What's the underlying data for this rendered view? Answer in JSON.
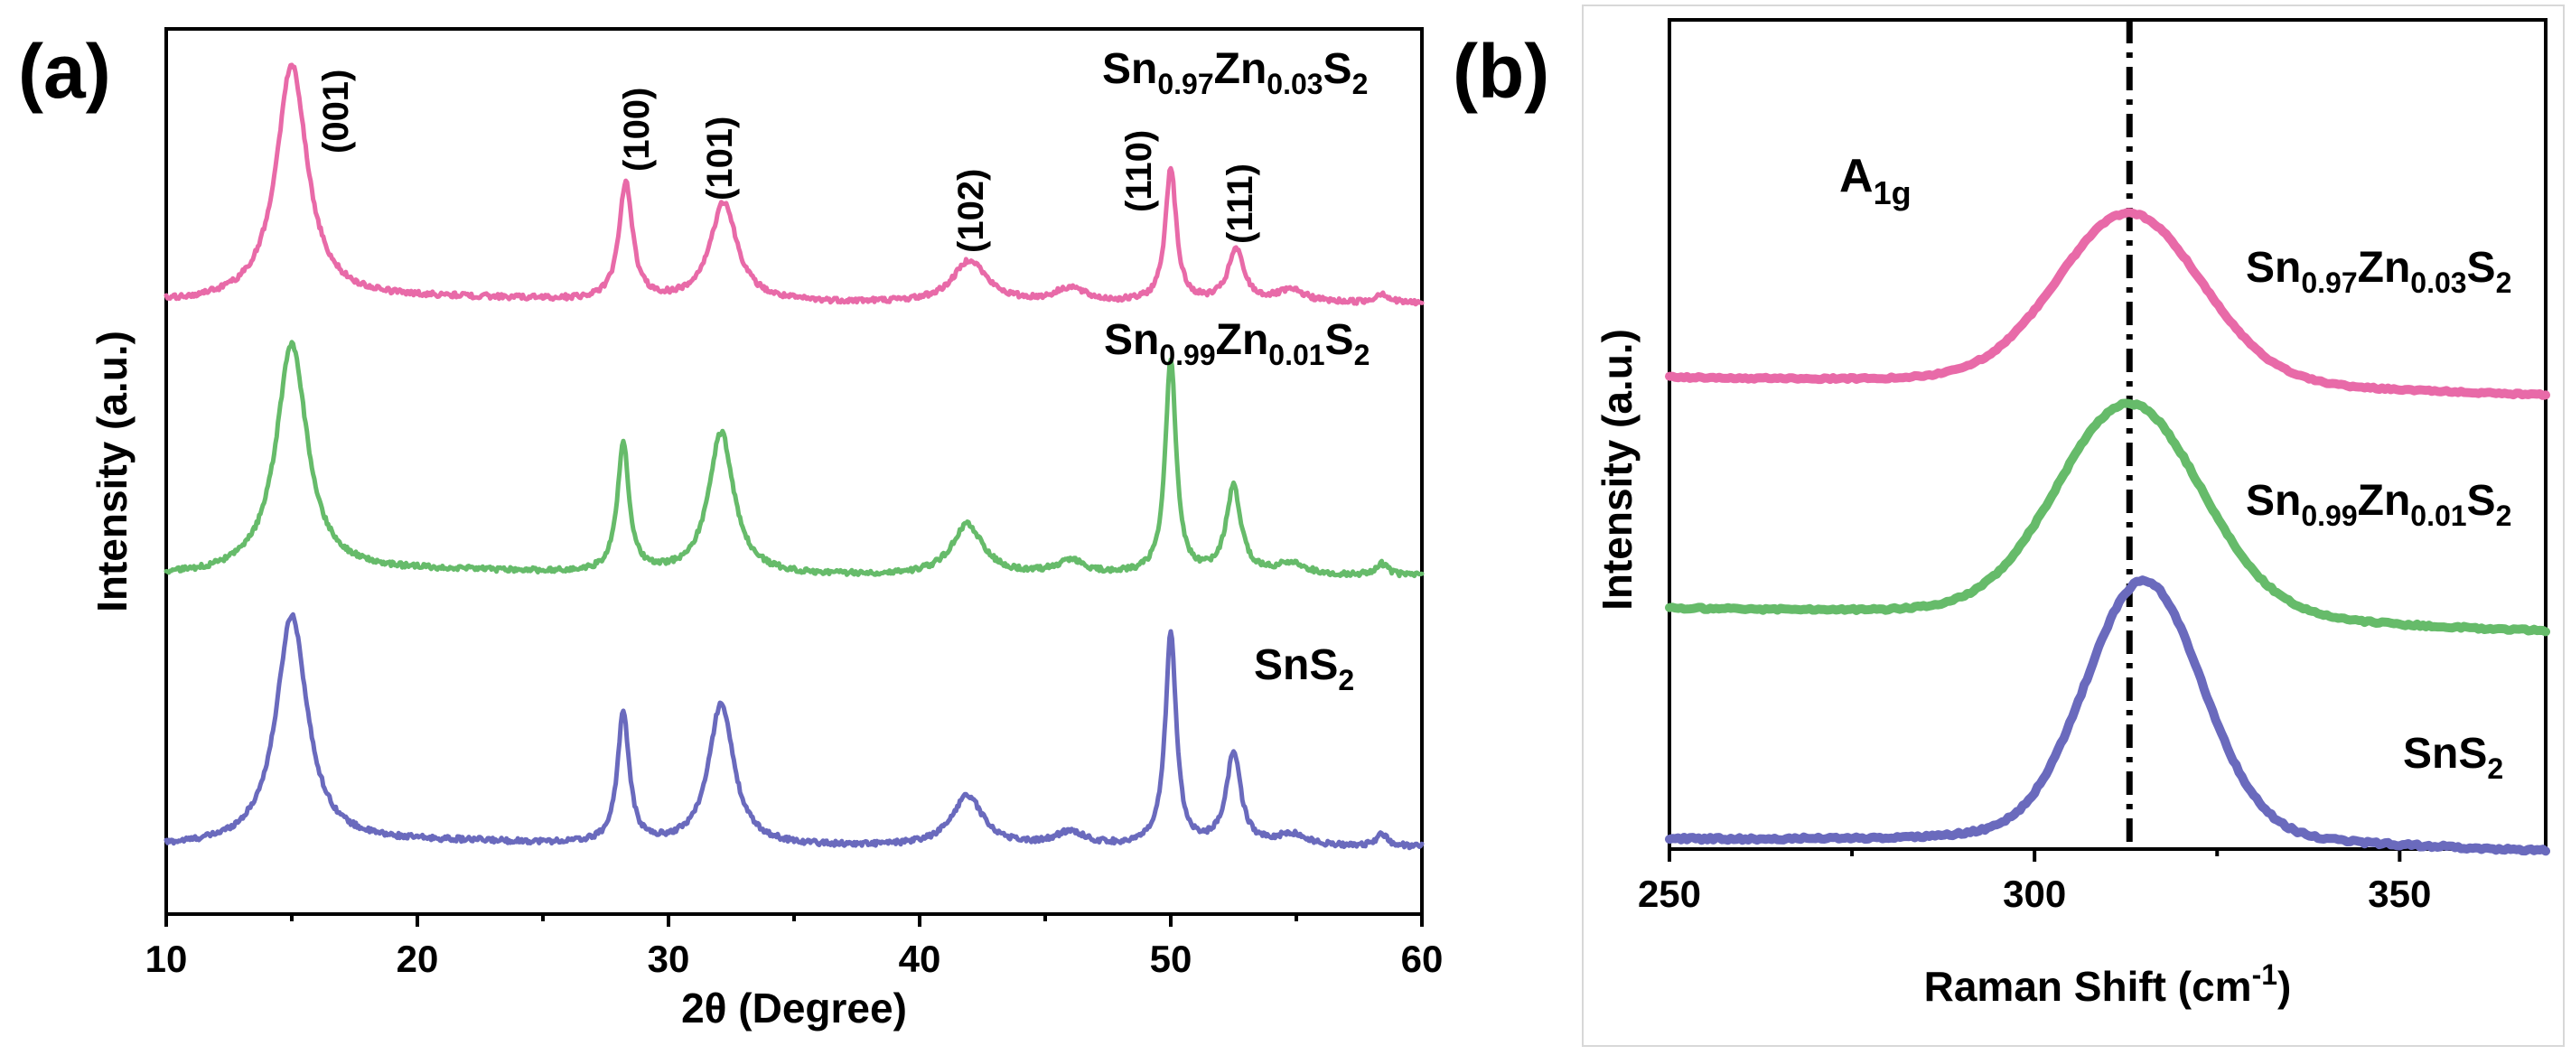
{
  "chart_data": [
    {
      "panel": "(a)",
      "type": "line",
      "title": "",
      "xlabel": "2θ (Degree)",
      "ylabel": "Intensity (a.u.)",
      "xlim": [
        10,
        60
      ],
      "xticks": [
        "10",
        "20",
        "30",
        "40",
        "50",
        "60"
      ],
      "yticks": [],
      "peak_labels": [
        {
          "label": "(001)",
          "x": 15.0
        },
        {
          "label": "(100)",
          "x": 28.3
        },
        {
          "label": "(101)",
          "x": 32.2
        },
        {
          "label": "(102)",
          "x": 42.0
        },
        {
          "label": "(110)",
          "x": 50.0
        },
        {
          "label": "(111)",
          "x": 52.6
        }
      ],
      "series": [
        {
          "name": "SnS2",
          "label_main": "SnS",
          "label_sub": "2",
          "color": "#6a6abd",
          "offset": 0,
          "peaks": [
            {
              "x": 15.0,
              "height": 1.0,
              "width": 0.75
            },
            {
              "x": 28.2,
              "height": 0.57,
              "width": 0.28
            },
            {
              "x": 32.1,
              "height": 0.62,
              "width": 0.6
            },
            {
              "x": 41.9,
              "height": 0.22,
              "width": 0.75
            },
            {
              "x": 46.0,
              "height": 0.06,
              "width": 0.7
            },
            {
              "x": 50.0,
              "height": 0.92,
              "width": 0.26
            },
            {
              "x": 52.5,
              "height": 0.4,
              "width": 0.35
            },
            {
              "x": 54.8,
              "height": 0.05,
              "width": 0.7
            },
            {
              "x": 58.4,
              "height": 0.05,
              "width": 0.3
            }
          ]
        },
        {
          "name": "Sn0.99Zn0.01S2",
          "label_main": [
            "Sn",
            "Zn",
            "S"
          ],
          "label_sub": [
            "0.99",
            "0.01",
            "2"
          ],
          "color": "#66bb6a",
          "offset": 1,
          "peaks": [
            {
              "x": 15.0,
              "height": 1.0,
              "width": 0.75
            },
            {
              "x": 28.2,
              "height": 0.56,
              "width": 0.28
            },
            {
              "x": 32.1,
              "height": 0.62,
              "width": 0.6
            },
            {
              "x": 41.9,
              "height": 0.22,
              "width": 0.75
            },
            {
              "x": 46.0,
              "height": 0.06,
              "width": 0.7
            },
            {
              "x": 50.0,
              "height": 0.93,
              "width": 0.26
            },
            {
              "x": 52.5,
              "height": 0.38,
              "width": 0.35
            },
            {
              "x": 54.8,
              "height": 0.05,
              "width": 0.7
            },
            {
              "x": 58.4,
              "height": 0.05,
              "width": 0.3
            }
          ]
        },
        {
          "name": "Sn0.97Zn0.03S2",
          "label_main": [
            "Sn",
            "Zn",
            "S"
          ],
          "label_sub": [
            "0.97",
            "0.03",
            "2"
          ],
          "color": "#e86aa8",
          "offset": 2,
          "peaks": [
            {
              "x": 15.0,
              "height": 1.0,
              "width": 0.75
            },
            {
              "x": 28.3,
              "height": 0.5,
              "width": 0.32
            },
            {
              "x": 32.2,
              "height": 0.42,
              "width": 0.65
            },
            {
              "x": 42.0,
              "height": 0.18,
              "width": 0.8
            },
            {
              "x": 46.0,
              "height": 0.06,
              "width": 0.7
            },
            {
              "x": 50.0,
              "height": 0.57,
              "width": 0.26
            },
            {
              "x": 52.6,
              "height": 0.22,
              "width": 0.38
            },
            {
              "x": 54.8,
              "height": 0.05,
              "width": 0.7
            },
            {
              "x": 58.4,
              "height": 0.04,
              "width": 0.3
            }
          ]
        }
      ]
    },
    {
      "panel": "(b)",
      "type": "line",
      "title": "",
      "xlabel_main": "Raman Shift (cm",
      "xlabel_sup": "-1",
      "xlabel_end": ")",
      "ylabel": "Intensity (a.u.)",
      "xlim": [
        250,
        370
      ],
      "xticks": [
        "250",
        "300",
        "350"
      ],
      "yticks": [],
      "mode_main": "A",
      "mode_sub": "1g",
      "reference_x": 313,
      "series": [
        {
          "name": "SnS2",
          "label_main": "SnS",
          "label_sub": "2",
          "color": "#6a6abd",
          "offset": 0,
          "peak_x": 315,
          "height": 1.0,
          "width": 10.5,
          "tail_end": 370
        },
        {
          "name": "Sn0.99Zn0.01S2",
          "label_main": [
            "Sn",
            "Zn",
            "S"
          ],
          "label_sub": [
            "0.99",
            "0.01",
            "2"
          ],
          "color": "#66bb6a",
          "offset": 1,
          "peak_x": 313,
          "height": 1.0,
          "width": 13.0
        },
        {
          "name": "Sn0.97Zn0.03S2",
          "label_main": [
            "Sn",
            "Zn",
            "S"
          ],
          "label_sub": [
            "0.97",
            "0.03",
            "2"
          ],
          "color": "#e86aa8",
          "offset": 2,
          "peak_x": 313,
          "height": 1.0,
          "width": 13.0
        }
      ]
    }
  ]
}
